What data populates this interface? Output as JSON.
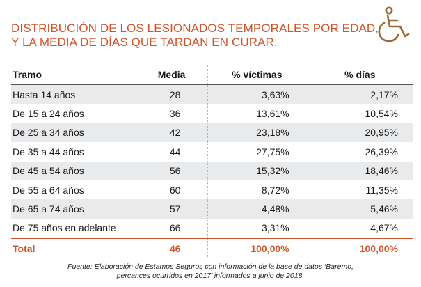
{
  "title": {
    "line1": "DISTRIBUCIÓN DE LOS LESIONADOS TEMPORALES POR EDAD,",
    "line2": "Y LA MEDIA DE DÍAS QUE TARDAN EN CURAR."
  },
  "icon": "wheelchair-icon",
  "colors": {
    "accent": "#d2522a",
    "stripe": "#e9eaec",
    "icon": "#9b6a3a"
  },
  "table": {
    "headers": {
      "tramo": "Tramo",
      "media": "Media",
      "victimas": "% víctimas",
      "dias": "% días"
    },
    "rows": [
      {
        "tramo": "Hasta 14 años",
        "media": "28",
        "victimas": "3,63%",
        "dias": "2,17%"
      },
      {
        "tramo": "De 15 a 24 años",
        "media": "36",
        "victimas": "13,61%",
        "dias": "10,54%"
      },
      {
        "tramo": "De 25 a 34 años",
        "media": "42",
        "victimas": "23,18%",
        "dias": "20,95%"
      },
      {
        "tramo": "De 35 a 44 años",
        "media": "44",
        "victimas": "27,75%",
        "dias": "26,39%"
      },
      {
        "tramo": "De 45 a 54 años",
        "media": "56",
        "victimas": "15,32%",
        "dias": "18,46%"
      },
      {
        "tramo": "De 55 a 64 años",
        "media": "60",
        "victimas": "8,72%",
        "dias": "11,35%"
      },
      {
        "tramo": "De 65 a 74 años",
        "media": "57",
        "victimas": "4,48%",
        "dias": "5,46%"
      },
      {
        "tramo": "De 75 años en adelante",
        "media": "66",
        "victimas": "3,31%",
        "dias": "4,67%"
      }
    ],
    "total": {
      "tramo": "Total",
      "media": "46",
      "victimas": "100,00%",
      "dias": "100,00%"
    }
  },
  "source": {
    "line1": "Fuente: Elaboración de Estamos Seguros con información de la base de datos ‘Baremo,",
    "line2": "percances ocurridos en 2017’ informados a junio de 2018."
  }
}
